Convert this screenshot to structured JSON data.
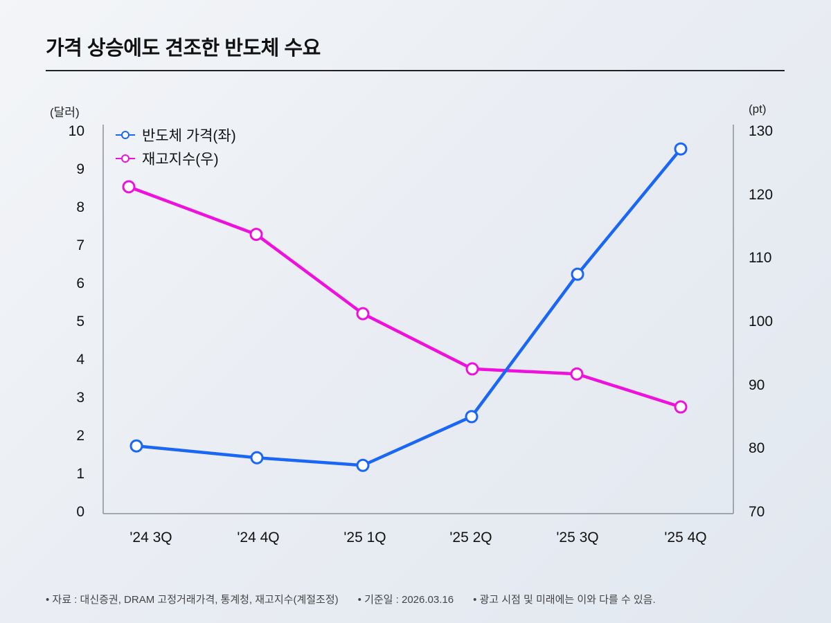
{
  "title": "가격 상승에도 견조한 반도체 수요",
  "axes": {
    "left_unit": "(달러)",
    "right_unit": "(pt)",
    "left_ticks": [
      "10",
      "9",
      "8",
      "7",
      "6",
      "5",
      "4",
      "3",
      "2",
      "1",
      "0"
    ],
    "right_ticks": [
      "130",
      "120",
      "110",
      "100",
      "90",
      "80",
      "70"
    ]
  },
  "legend": [
    {
      "label": "반도체 가격(좌)",
      "color": "#1a66f5"
    },
    {
      "label": "재고지수(우)",
      "color": "#ee11dd"
    }
  ],
  "x_labels": [
    "'24 3Q",
    "'24 4Q",
    "'25 1Q",
    "'25 2Q",
    "'25 3Q",
    "'25 4Q"
  ],
  "footer": {
    "source": "• 자료 : 대신증권, DRAM 고정거래가격, 통계청, 재고지수(계절조정)",
    "date": "• 기준일 : 2026.03.16",
    "disclaimer": "• 광고 시점 및 미래에는 이와 다를 수 있음."
  },
  "chart_data": {
    "type": "line",
    "title": "가격 상승에도 견조한 반도체 수요",
    "categories": [
      "'24 3Q",
      "'24 4Q",
      "'25 1Q",
      "'25 2Q",
      "'25 3Q",
      "'25 4Q"
    ],
    "series": [
      {
        "name": "반도체 가격(좌)",
        "axis": "left",
        "color": "#1a66f5",
        "values": [
          1.76,
          1.45,
          1.25,
          2.53,
          6.27,
          9.56
        ]
      },
      {
        "name": "재고지수(우)",
        "axis": "right",
        "color": "#ee11dd",
        "values": [
          121.4,
          113.9,
          101.4,
          92.7,
          91.9,
          86.7
        ]
      }
    ],
    "ylabel_left": "(달러)",
    "ylabel_right": "(pt)",
    "ylim_left": [
      0,
      10
    ],
    "ylim_right": [
      70,
      130
    ],
    "grid": false,
    "legend_position": "top-left"
  }
}
